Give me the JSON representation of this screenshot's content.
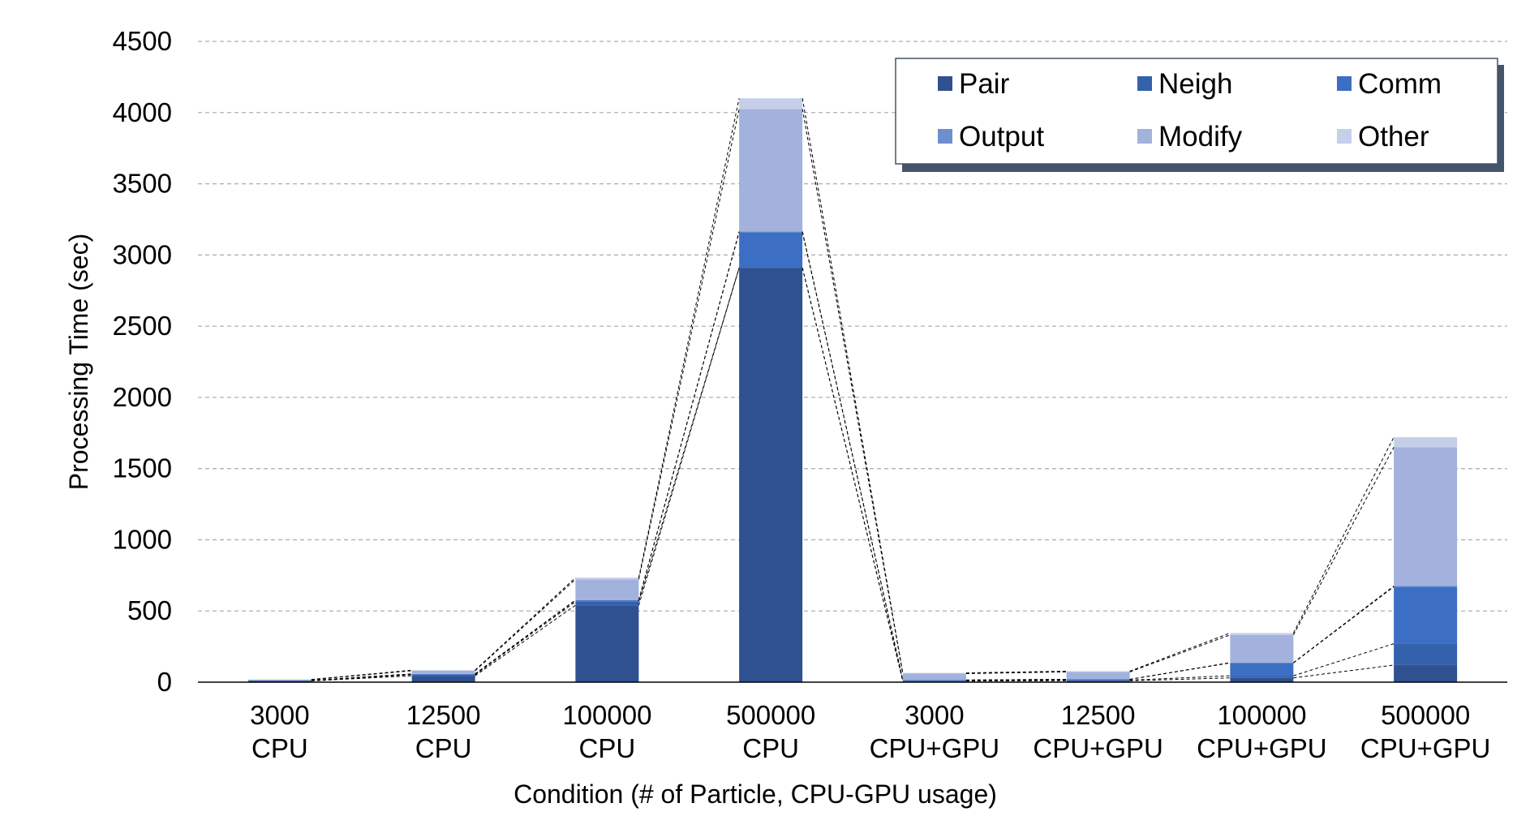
{
  "chart_data": {
    "type": "bar",
    "stacked": true,
    "title": "",
    "xlabel": "Condition (# of Particle, CPU-GPU usage)",
    "ylabel": "Processing Time (sec)",
    "ylim": [
      0,
      4500
    ],
    "yticks": [
      0,
      500,
      1000,
      1500,
      2000,
      2500,
      3000,
      3500,
      4000,
      4500
    ],
    "grid": true,
    "legend_position": "top-right",
    "categories": [
      [
        "3000",
        "CPU"
      ],
      [
        "12500",
        "CPU"
      ],
      [
        "100000",
        "CPU"
      ],
      [
        "500000",
        "CPU"
      ],
      [
        "3000",
        "CPU+GPU"
      ],
      [
        "12500",
        "CPU+GPU"
      ],
      [
        "100000",
        "CPU+GPU"
      ],
      [
        "500000",
        "CPU+GPU"
      ]
    ],
    "series": [
      {
        "name": "Pair",
        "color": "#2F5190",
        "values": [
          9,
          45,
          540,
          2910,
          8,
          10,
          30,
          120
        ]
      },
      {
        "name": "Neigh",
        "color": "#3361AC",
        "values": [
          2,
          8,
          25,
          0,
          3,
          4,
          15,
          150
        ]
      },
      {
        "name": "Comm",
        "color": "#3C6EC4",
        "values": [
          1,
          5,
          10,
          250,
          4,
          6,
          90,
          400
        ]
      },
      {
        "name": "Output",
        "color": "#6E8FCF",
        "values": [
          0,
          0,
          2,
          5,
          0,
          0,
          2,
          5
        ]
      },
      {
        "name": "Modify",
        "color": "#A2B2DC",
        "values": [
          6,
          22,
          145,
          860,
          45,
          52,
          195,
          975
        ]
      },
      {
        "name": "Other",
        "color": "#C5CFE9",
        "values": [
          1,
          4,
          12,
          75,
          5,
          5,
          13,
          70
        ]
      }
    ]
  }
}
